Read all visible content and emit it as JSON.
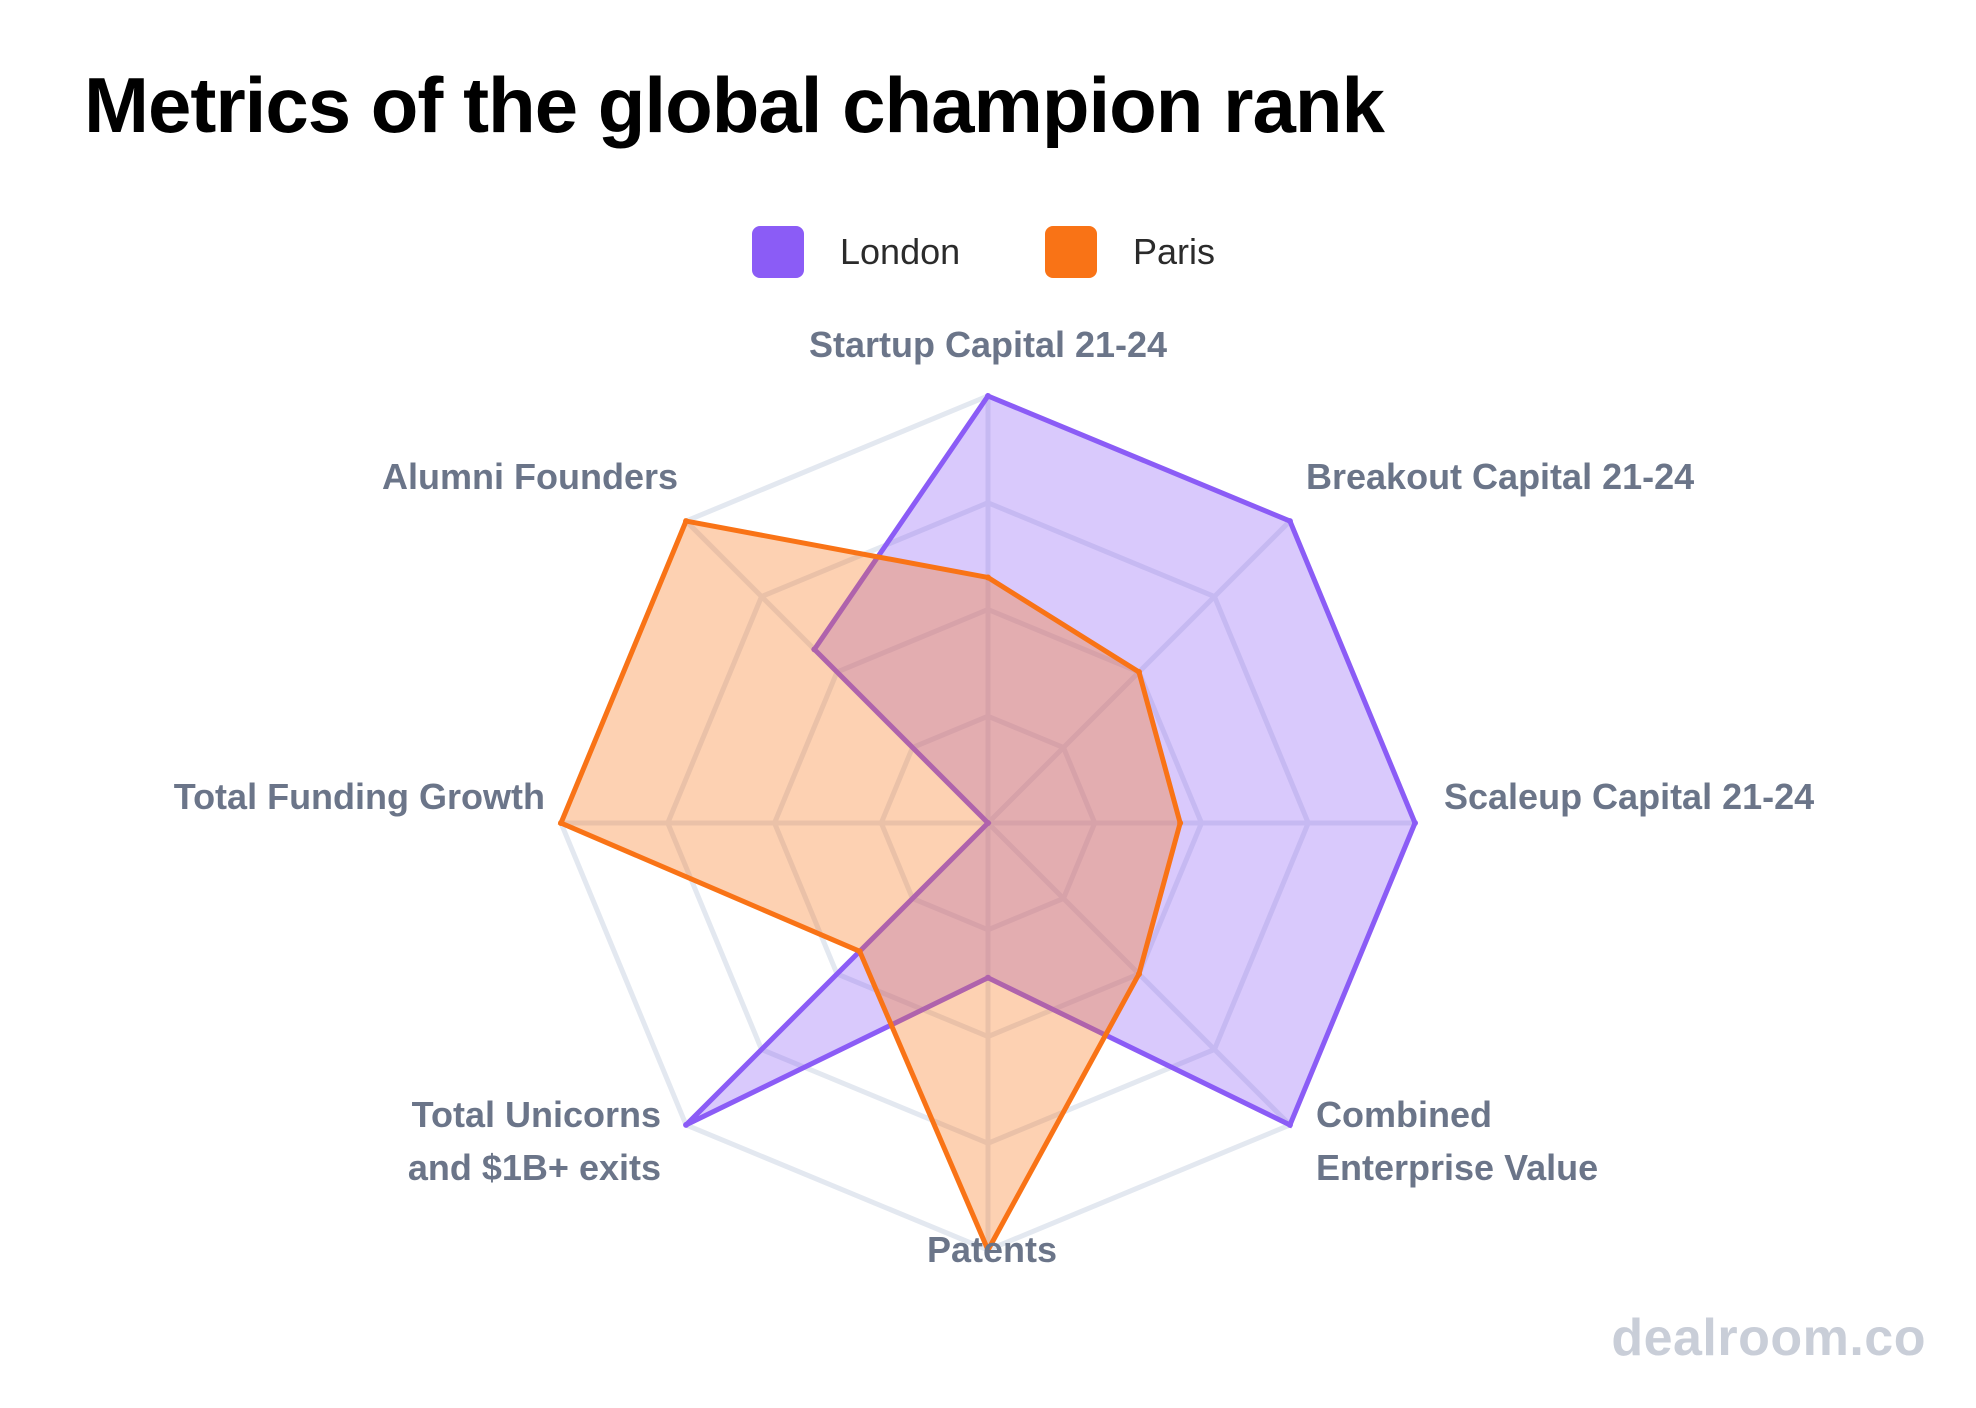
{
  "title": "Metrics of the global champion rank",
  "watermark": "dealroom.co",
  "colors": {
    "grid": "#e3e8f0",
    "london": "#8b5cf6",
    "london_fill": "rgba(139,92,246,0.33)",
    "paris": "#f97316",
    "paris_fill": "rgba(249,115,22,0.33)",
    "label": "#6b7589"
  },
  "chart_data": {
    "type": "radar",
    "title": "Metrics of the global champion rank",
    "axes": [
      [
        "Startup Capital 21-24"
      ],
      [
        "Breakout Capital 21-24"
      ],
      [
        "Scaleup Capital 21-24"
      ],
      [
        "Combined",
        "Enterprise Value"
      ],
      [
        "Patents"
      ],
      [
        "Total Unicorns",
        "and $1B+ exits"
      ],
      [
        "Total Funding Growth"
      ],
      [
        "Alumni Founders"
      ]
    ],
    "range": [
      0,
      4
    ],
    "grid_levels": 4,
    "legend_position": "top-center",
    "series": [
      {
        "name": "London",
        "values": [
          4,
          4,
          4,
          4,
          1.45,
          4,
          0,
          2.3
        ]
      },
      {
        "name": "Paris",
        "values": [
          2.3,
          2.0,
          1.8,
          2.0,
          4,
          1.7,
          4,
          4
        ]
      }
    ]
  }
}
